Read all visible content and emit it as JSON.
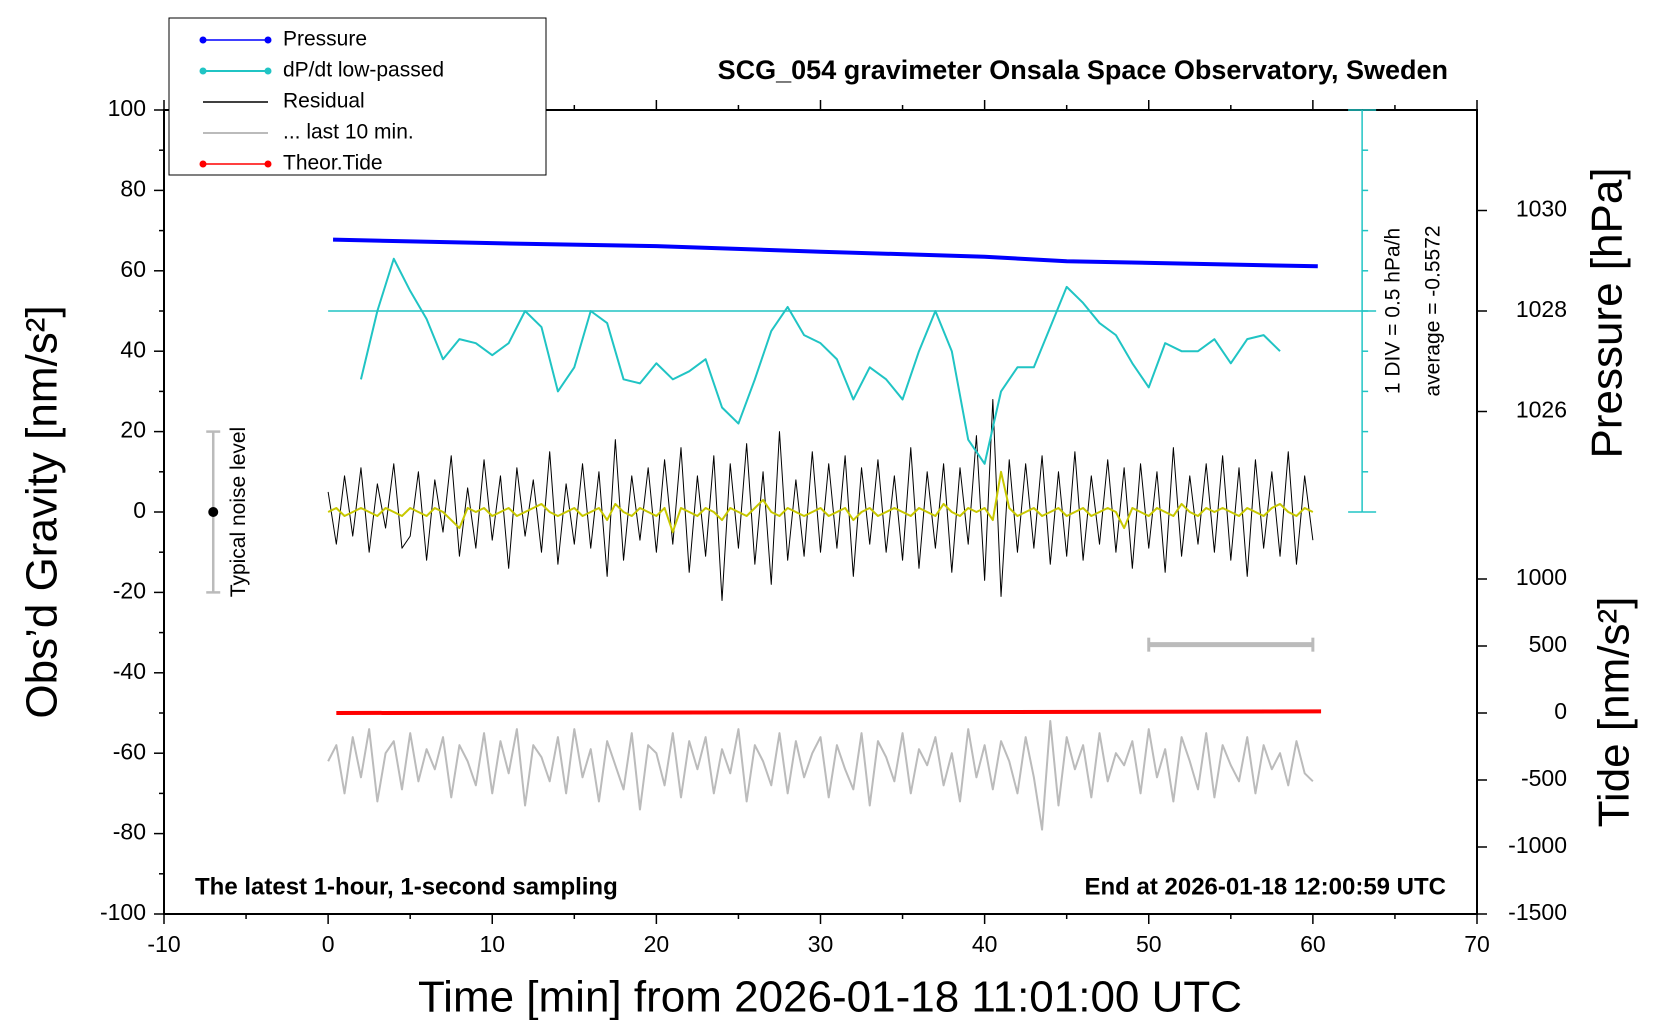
{
  "chart_data": {
    "type": "line",
    "title": "SCG_054 gravimeter Onsala Space Observatory, Sweden",
    "xlabel": "Time [min] from 2026-01-18 11:01:00 UTC",
    "ylabel": "Obs’d Gravity [nm/s²]",
    "xlim": [
      -10,
      70
    ],
    "xticks": [
      -10,
      0,
      10,
      20,
      30,
      40,
      50,
      60,
      70
    ],
    "ylim": [
      -100,
      100
    ],
    "yticks": [
      -100,
      -80,
      -60,
      -40,
      -20,
      0,
      20,
      40,
      60,
      80,
      100
    ],
    "pressure_axis": {
      "label": "Pressure [hPa]",
      "lim": [
        1024,
        1032
      ],
      "ticks": [
        1026,
        1028,
        1030
      ]
    },
    "tide_axis": {
      "label": "Tide [nm/s²]",
      "lim": [
        -1500,
        1500
      ],
      "ticks": [
        -1500,
        -1000,
        -500,
        0,
        500,
        1000
      ]
    },
    "note_left": "The latest 1-hour, 1-second sampling",
    "note_right": "End at 2026-01-18 12:00:59 UTC",
    "noise_bar": {
      "x": -7,
      "range": [
        -20,
        20
      ],
      "center": 0,
      "label": "Typical noise level"
    },
    "dpdt_scale": {
      "x": 63,
      "ticks": [
        0,
        10,
        20,
        30,
        40,
        50,
        60,
        70,
        80,
        90,
        100
      ],
      "reference": 50,
      "label": "1 DIV = 0.5 hPa/h",
      "average": "average = -0.5572"
    },
    "last10_span": {
      "x": [
        50,
        60
      ],
      "y": -33
    },
    "x": [
      0,
      0.5,
      1,
      1.5,
      2,
      2.5,
      3,
      3.5,
      4,
      4.5,
      5,
      5.5,
      6,
      6.5,
      7,
      7.5,
      8,
      8.5,
      9,
      9.5,
      10,
      10.5,
      11,
      11.5,
      12,
      12.5,
      13,
      13.5,
      14,
      14.5,
      15,
      15.5,
      16,
      16.5,
      17,
      17.5,
      18,
      18.5,
      19,
      19.5,
      20,
      20.5,
      21,
      21.5,
      22,
      22.5,
      23,
      23.5,
      24,
      24.5,
      25,
      25.5,
      26,
      26.5,
      27,
      27.5,
      28,
      28.5,
      29,
      29.5,
      30,
      30.5,
      31,
      31.5,
      32,
      32.5,
      33,
      33.5,
      34,
      34.5,
      35,
      35.5,
      36,
      36.5,
      37,
      37.5,
      38,
      38.5,
      39,
      39.5,
      40,
      40.5,
      41,
      41.5,
      42,
      42.5,
      43,
      43.5,
      44,
      44.5,
      45,
      45.5,
      46,
      46.5,
      47,
      47.5,
      48,
      48.5,
      49,
      49.5,
      50,
      50.5,
      51,
      51.5,
      52,
      52.5,
      53,
      53.5,
      54,
      54.5,
      55,
      55.5,
      56,
      56.5,
      57,
      57.5,
      58,
      58.5,
      59,
      59.5,
      60
    ],
    "series": [
      {
        "name": "Pressure",
        "color": "#0000ff",
        "axis": "pressure",
        "marker": true,
        "width": 4,
        "x": [
          0.3,
          10,
          20,
          30,
          40,
          45,
          60.3
        ],
        "values": [
          1029.42,
          1029.35,
          1029.29,
          1029.18,
          1029.08,
          1028.99,
          1028.89
        ]
      },
      {
        "name": "dP/dt low-passed",
        "color": "#20c4c4",
        "marker": true,
        "width": 2,
        "x": [
          2,
          3,
          4,
          5,
          6,
          7,
          8,
          9,
          10,
          11,
          12,
          13,
          14,
          15,
          16,
          17,
          18,
          19,
          20,
          21,
          22,
          23,
          24,
          25,
          26,
          27,
          28,
          29,
          30,
          31,
          32,
          33,
          34,
          35,
          36,
          37,
          38,
          39,
          40,
          41,
          42,
          43,
          44,
          45,
          46,
          47,
          48,
          49,
          50,
          51,
          52,
          53,
          54,
          55,
          56,
          57,
          58
        ],
        "values": [
          33,
          50,
          63,
          55,
          48,
          38,
          43,
          42,
          39,
          42,
          50,
          46,
          30,
          36,
          50,
          47,
          33,
          32,
          37,
          33,
          35,
          38,
          26,
          22,
          33,
          45,
          51,
          44,
          42,
          38,
          28,
          36,
          33,
          28,
          40,
          50,
          40,
          18,
          12,
          30,
          36,
          36,
          46,
          56,
          52,
          47,
          44,
          37,
          31,
          42,
          40,
          40,
          43,
          37,
          43,
          44,
          40
        ]
      },
      {
        "name": "Residual",
        "color": "#000000",
        "width": 1,
        "values": [
          5,
          -8,
          9,
          -6,
          11,
          -10,
          7,
          -4,
          12,
          -9,
          -6,
          10,
          -12,
          8,
          -5,
          14,
          -11,
          6,
          -9,
          13,
          -7,
          9,
          -14,
          11,
          -6,
          8,
          -10,
          15,
          -13,
          7,
          -8,
          12,
          -9,
          10,
          -16,
          18,
          -12,
          9,
          -7,
          11,
          -10,
          13,
          -8,
          16,
          -15,
          9,
          -11,
          14,
          -22,
          12,
          -9,
          17,
          -13,
          10,
          -18,
          20,
          -12,
          8,
          -11,
          15,
          -10,
          12,
          -9,
          14,
          -16,
          11,
          -8,
          13,
          -10,
          9,
          -12,
          16,
          -14,
          10,
          -9,
          12,
          -15,
          11,
          -8,
          19,
          -17,
          28,
          -21,
          13,
          -10,
          12,
          -9,
          14,
          -13,
          10,
          -11,
          15,
          -12,
          9,
          -8,
          13,
          -10,
          11,
          -14,
          12,
          -9,
          10,
          -15,
          16,
          -11,
          9,
          -8,
          12,
          -10,
          14,
          -12,
          11,
          -16,
          13,
          -9,
          10,
          -11,
          15,
          -13,
          9,
          -7
        ]
      },
      {
        "color": "#c8c800",
        "width": 2,
        "values": [
          0,
          1,
          -1,
          0,
          1,
          0,
          -1,
          1,
          0,
          -1,
          1,
          0,
          -1,
          1,
          0,
          -2,
          -4,
          1,
          0,
          1,
          -1,
          0,
          1,
          -1,
          0,
          1,
          2,
          0,
          -1,
          0,
          1,
          -1,
          0,
          1,
          -2,
          2,
          0,
          -1,
          1,
          0,
          -1,
          1,
          -5,
          1,
          0,
          -1,
          1,
          0,
          -2,
          1,
          0,
          -1,
          1,
          3,
          0,
          -1,
          1,
          0,
          -1,
          0,
          1,
          -1,
          0,
          1,
          -2,
          0,
          1,
          -1,
          0,
          1,
          0,
          -1,
          1,
          0,
          -1,
          2,
          0,
          -1,
          1,
          0,
          1,
          -2,
          10,
          1,
          -1,
          0,
          1,
          -1,
          0,
          1,
          -1,
          0,
          1,
          -1,
          0,
          1,
          0,
          -4,
          1,
          0,
          -1,
          1,
          0,
          -1,
          2,
          0,
          -1,
          1,
          0,
          1,
          0,
          -1,
          1,
          0,
          -1,
          1,
          2,
          0,
          -1,
          1,
          0
        ]
      },
      {
        "name": "... last 10 min.",
        "color": "#bbbbbb",
        "width": 2,
        "values": [
          -62,
          -58,
          -70,
          -56,
          -66,
          -54,
          -72,
          -60,
          -57,
          -69,
          -55,
          -67,
          -59,
          -64,
          -56,
          -71,
          -58,
          -62,
          -68,
          -55,
          -70,
          -57,
          -65,
          -54,
          -73,
          -58,
          -61,
          -67,
          -56,
          -70,
          -54,
          -66,
          -59,
          -72,
          -57,
          -63,
          -69,
          -55,
          -74,
          -58,
          -60,
          -68,
          -55,
          -71,
          -57,
          -64,
          -56,
          -70,
          -59,
          -65,
          -54,
          -72,
          -58,
          -62,
          -68,
          -55,
          -70,
          -57,
          -66,
          -60,
          -56,
          -71,
          -58,
          -64,
          -69,
          -55,
          -73,
          -57,
          -61,
          -67,
          -55,
          -70,
          -59,
          -63,
          -56,
          -68,
          -60,
          -72,
          -54,
          -66,
          -58,
          -69,
          -57,
          -62,
          -70,
          -56,
          -66,
          -79,
          -52,
          -73,
          -56,
          -64,
          -58,
          -71,
          -55,
          -67,
          -60,
          -63,
          -57,
          -70,
          -54,
          -66,
          -59,
          -72,
          -56,
          -62,
          -69,
          -55,
          -71,
          -58,
          -63,
          -67,
          -56,
          -70,
          -58,
          -64,
          -60,
          -68,
          -57,
          -65,
          -67
        ]
      },
      {
        "name": "Theor.Tide",
        "color": "#ff0000",
        "axis": "tide",
        "marker": true,
        "width": 4,
        "x": [
          0.5,
          30,
          60.5
        ],
        "values": [
          0,
          5,
          12
        ]
      }
    ]
  }
}
